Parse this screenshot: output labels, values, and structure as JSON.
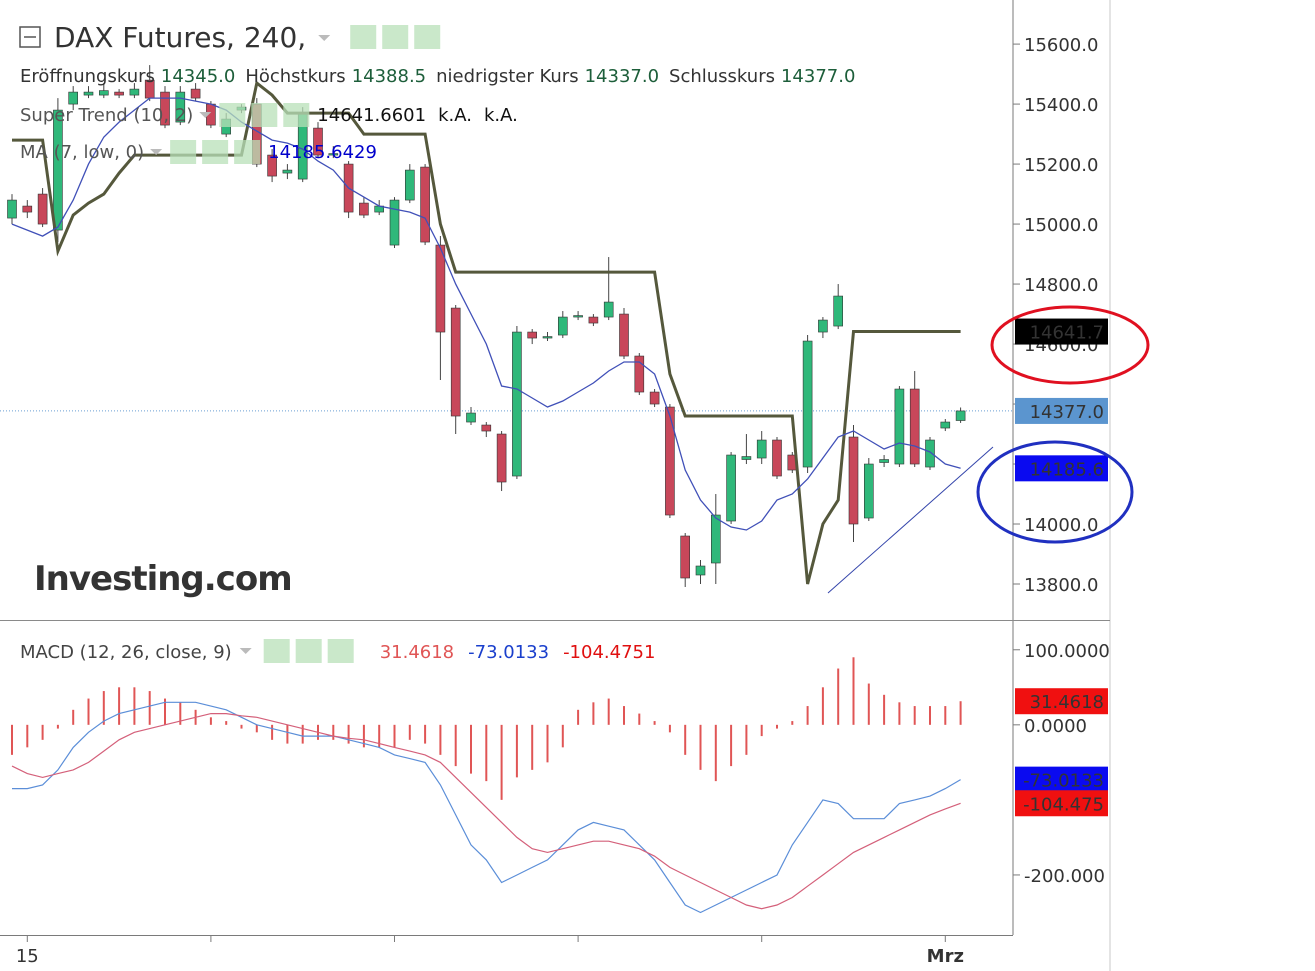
{
  "chart_data": [
    {
      "type": "candlestick",
      "title": "DAX Futures, 240,",
      "ohlc_legend": [
        {
          "label": "Eröffnungskurs",
          "value": "14345.0"
        },
        {
          "label": "Höchstkurs",
          "value": "14388.5"
        },
        {
          "label": "niedrigster Kurs",
          "value": "14337.0"
        },
        {
          "label": "Schlusskurs",
          "value": "14377.0"
        }
      ],
      "watermark": "Investing.com",
      "categories": [
        null,
        "15",
        null,
        null,
        null,
        null,
        null,
        null,
        null,
        null,
        null,
        null,
        null,
        null,
        null,
        null,
        null,
        null,
        null,
        null,
        null,
        null,
        null,
        null,
        null,
        null,
        null,
        null,
        null,
        null,
        null,
        null,
        null,
        null,
        null,
        null,
        null,
        null,
        null,
        null,
        null,
        null,
        null,
        null,
        null,
        null,
        null,
        null,
        null,
        null,
        null,
        null,
        null,
        null,
        null,
        null,
        null,
        null,
        null,
        null,
        null,
        "Mrz",
        null
      ],
      "open": [
        15020,
        15060,
        15100,
        14980,
        15400,
        15430,
        15430,
        15440,
        15430,
        15480,
        15440,
        15340,
        15450,
        15400,
        15300,
        15380,
        15400,
        15230,
        15170,
        15150,
        15320,
        15230,
        15200,
        15070,
        15040,
        14930,
        15080,
        15190,
        14930,
        14720,
        14340,
        14330,
        14300,
        14160,
        14640,
        14620,
        14630,
        14690,
        14690,
        14690,
        14700,
        14560,
        14440,
        14390,
        13960,
        13830,
        13870,
        14010,
        14215,
        14220,
        14280,
        14230,
        14190,
        14640,
        14660,
        14290,
        14020,
        14205,
        14200,
        14450,
        14190,
        14320,
        14345
      ],
      "high": [
        15100,
        15080,
        15120,
        15420,
        15460,
        15460,
        15470,
        15450,
        15470,
        15530,
        15460,
        15460,
        15470,
        15410,
        15370,
        15400,
        15420,
        15250,
        15200,
        15390,
        15340,
        15260,
        15210,
        15090,
        15080,
        15090,
        15200,
        15200,
        14960,
        14730,
        14390,
        14340,
        14310,
        14660,
        14650,
        14640,
        14710,
        14710,
        14700,
        14890,
        14720,
        14570,
        14450,
        14400,
        13970,
        13880,
        14100,
        14240,
        14300,
        14310,
        14290,
        14240,
        14630,
        14690,
        14800,
        14330,
        14220,
        14230,
        14460,
        14510,
        14290,
        14350,
        14388.5
      ],
      "low": [
        15000,
        15020,
        14990,
        14940,
        15380,
        15420,
        15420,
        15420,
        15420,
        15410,
        15320,
        15330,
        15410,
        15320,
        15290,
        15370,
        15190,
        15140,
        15150,
        15140,
        15220,
        15220,
        15020,
        15020,
        15030,
        14920,
        15070,
        14930,
        14480,
        14300,
        14330,
        14290,
        14110,
        14150,
        14600,
        14610,
        14620,
        14680,
        14660,
        14680,
        14550,
        14430,
        14390,
        14020,
        13790,
        13800,
        13800,
        14000,
        14200,
        14200,
        14150,
        14170,
        14170,
        14620,
        14650,
        13940,
        14010,
        14190,
        14190,
        14190,
        14180,
        14310,
        14337
      ],
      "close": [
        15080,
        15040,
        15000,
        15380,
        15440,
        15440,
        15445,
        15430,
        15450,
        15420,
        15330,
        15440,
        15420,
        15330,
        15350,
        15390,
        15200,
        15160,
        15180,
        15370,
        15230,
        15235,
        15040,
        15030,
        15060,
        15080,
        15180,
        14940,
        14640,
        14360,
        14370,
        14310,
        14140,
        14640,
        14620,
        14625,
        14690,
        14695,
        14670,
        14740,
        14560,
        14440,
        14400,
        14030,
        13820,
        13860,
        14030,
        14230,
        14225,
        14280,
        14160,
        14180,
        14610,
        14680,
        14760,
        14000,
        14200,
        14215,
        14450,
        14200,
        14280,
        14340,
        14377
      ],
      "up_color": "#2fb87a",
      "down_color": "#c8475a",
      "last_close_label": "14377.0",
      "last_close_color": "#5b95cf",
      "series": [
        {
          "name": "Super Trend (10, 2)",
          "color": "#55583c",
          "legend_color": "#111111",
          "legend_values": [
            "14641.6601",
            "k.A.",
            "k.A."
          ],
          "last_label": "14641.7",
          "label_bg": "#000000",
          "values": [
            15280,
            15280,
            15280,
            14910,
            15030,
            15070,
            15100,
            15170,
            15230,
            15230,
            15230,
            15230,
            15230,
            15230,
            15230,
            15230,
            15470,
            15430,
            15370,
            15370,
            15370,
            15370,
            15370,
            15300,
            15300,
            15300,
            15300,
            15300,
            15000,
            14840,
            14840,
            14840,
            14840,
            14840,
            14840,
            14840,
            14840,
            14840,
            14840,
            14840,
            14840,
            14840,
            14840,
            14500,
            14360,
            14360,
            14360,
            14360,
            14360,
            14360,
            14360,
            14360,
            13800,
            14000,
            14080,
            14641.6601,
            14641.6601,
            14641.6601,
            14641.6601,
            14641.6601,
            14641.6601,
            14641.6601,
            14641.6601
          ]
        },
        {
          "name": "MA (7, low, 0)",
          "color": "#4050b8",
          "legend_color": "#0000cc",
          "legend_values": [
            "14185.6429"
          ],
          "last_label": "14185.6",
          "label_bg": "#0a0af0",
          "values": [
            15000,
            14980,
            14960,
            14990,
            15080,
            15200,
            15290,
            15340,
            15380,
            15420,
            15420,
            15420,
            15410,
            15400,
            15380,
            15340,
            15310,
            15280,
            15270,
            15250,
            15210,
            15180,
            15120,
            15090,
            15060,
            15050,
            15040,
            15020,
            14920,
            14800,
            14700,
            14600,
            14460,
            14450,
            14420,
            14390,
            14410,
            14440,
            14470,
            14510,
            14540,
            14540,
            14500,
            14360,
            14180,
            14080,
            14020,
            13990,
            13980,
            14010,
            14080,
            14100,
            14150,
            14220,
            14290,
            14310,
            14280,
            14250,
            14270,
            14260,
            14240,
            14200,
            14185.6429
          ]
        }
      ],
      "ylim": [
        13680,
        15747
      ],
      "yticks": [
        {
          "value": 13800,
          "label": "13800.0"
        },
        {
          "value": 14000,
          "label": "14000.0"
        },
        {
          "value": 14200,
          "label": "14200.0"
        },
        {
          "value": 14400,
          "label": "14400.0"
        },
        {
          "value": 14600,
          "label": "14600.0"
        },
        {
          "value": 14800,
          "label": "14800.0"
        },
        {
          "value": 15000,
          "label": "15000.0"
        },
        {
          "value": 15200,
          "label": "15200.0"
        },
        {
          "value": 15400,
          "label": "15400.0"
        },
        {
          "value": 15600,
          "label": "15600.0"
        }
      ]
    },
    {
      "type": "macd",
      "title": "MACD (12, 26, close, 9)",
      "series": [
        {
          "kind": "bar",
          "color": "#e05555",
          "legend_value": "31.4618",
          "last_label": "31.4618",
          "label_bg": "#f01010",
          "values": [
            -40,
            -30,
            -20,
            -5,
            20,
            35,
            45,
            50,
            50,
            45,
            35,
            30,
            20,
            10,
            5,
            -5,
            -10,
            -20,
            -25,
            -25,
            -20,
            -20,
            -25,
            -30,
            -30,
            -30,
            -20,
            -25,
            -40,
            -55,
            -65,
            -75,
            -100,
            -70,
            -60,
            -50,
            -30,
            20,
            30,
            35,
            25,
            15,
            5,
            -10,
            -40,
            -60,
            -75,
            -55,
            -40,
            -15,
            -5,
            5,
            25,
            50,
            75,
            90,
            55,
            40,
            30,
            25,
            25,
            25,
            31.4618
          ]
        },
        {
          "kind": "line",
          "color": "#5b8ed8",
          "legend_color": "#1a3fcc",
          "legend_value": "-73.0133",
          "last_label": "-73.0133",
          "label_bg": "#0a0af0",
          "values": [
            -85,
            -85,
            -80,
            -60,
            -30,
            -10,
            5,
            15,
            20,
            25,
            30,
            30,
            30,
            25,
            20,
            10,
            0,
            -5,
            -10,
            -15,
            -15,
            -15,
            -20,
            -25,
            -30,
            -40,
            -45,
            -50,
            -80,
            -120,
            -160,
            -180,
            -210,
            -200,
            -190,
            -180,
            -160,
            -140,
            -130,
            -135,
            -140,
            -160,
            -180,
            -210,
            -240,
            -250,
            -240,
            -230,
            -220,
            -210,
            -200,
            -160,
            -130,
            -100,
            -105,
            -125,
            -125,
            -125,
            -105,
            -100,
            -95,
            -85,
            -73.0133
          ]
        },
        {
          "kind": "line",
          "color": "#d4607a",
          "legend_color": "#e01010",
          "legend_value": "-104.4751",
          "last_label": "-104.475",
          "label_bg": "#f01010",
          "values": [
            -55,
            -65,
            -70,
            -65,
            -60,
            -50,
            -35,
            -20,
            -10,
            -5,
            0,
            5,
            10,
            15,
            15,
            12,
            10,
            5,
            0,
            -5,
            -10,
            -15,
            -18,
            -20,
            -25,
            -30,
            -35,
            -40,
            -50,
            -70,
            -90,
            -110,
            -130,
            -150,
            -165,
            -170,
            -165,
            -160,
            -155,
            -155,
            -160,
            -165,
            -175,
            -190,
            -200,
            -210,
            -220,
            -230,
            -240,
            -245,
            -240,
            -230,
            -215,
            -200,
            -185,
            -170,
            -160,
            -150,
            -140,
            -130,
            -120,
            -112,
            -104.4751
          ]
        }
      ],
      "ylim": [
        -280,
        137
      ],
      "yticks": [
        {
          "value": -200,
          "label": "-200.000"
        },
        {
          "value": 0,
          "label": "0.0000"
        },
        {
          "value": 100,
          "label": "100.0000"
        }
      ]
    }
  ]
}
